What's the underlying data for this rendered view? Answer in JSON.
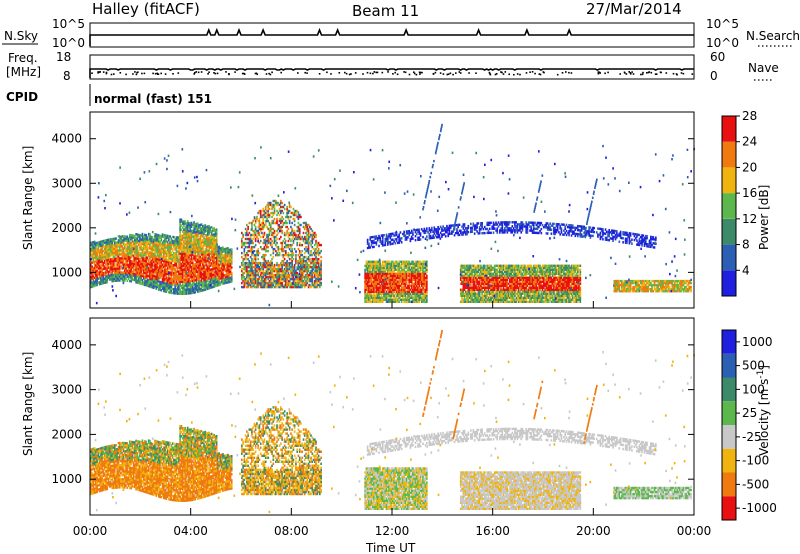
{
  "header": {
    "station": "Halley (fitACF)",
    "beam": "Beam 11",
    "date": "27/Mar/2014"
  },
  "strip_labels": {
    "nsky": "N.Sky",
    "nsky_top": "10^5",
    "nsky_bottom": "10^0",
    "nsearch": "N.Search",
    "nsearch_top": "10^5",
    "nsearch_bottom": "10^0",
    "freq_line1": "Freq.",
    "freq_line2": "[MHz]",
    "freq_top": "18",
    "freq_bottom": "8",
    "nave": "Nave",
    "nave_top": "60",
    "nave_bottom": "0",
    "cpid": "CPID",
    "cpid_value": "normal (fast) 151"
  },
  "chart_data": [
    {
      "type": "heatmap",
      "name": "power",
      "ylabel": "Slant Range [km]",
      "ylim": [
        200,
        4600
      ],
      "yticks": [
        "1000",
        "2000",
        "3000",
        "4000"
      ],
      "colorbar_label": "Power [dB]",
      "colorbar_ticks": [
        "4",
        "8",
        "12",
        "16",
        "20",
        "24",
        "28"
      ],
      "colors": [
        "#1f1fe0",
        "#2b5fb3",
        "#3c8a6a",
        "#5cb84c",
        "#f0b410",
        "#f07a10",
        "#e81010"
      ],
      "regions": [
        {
          "t": [
            0.0,
            5.5
          ],
          "r": [
            600,
            1900
          ],
          "level": "high",
          "note_free": true
        },
        {
          "t": [
            6.0,
            9.0
          ],
          "r": [
            600,
            2600
          ],
          "level": "mixed"
        },
        {
          "t": [
            10.8,
            13.4
          ],
          "r": [
            300,
            1300
          ],
          "level": "high"
        },
        {
          "t": [
            14.7,
            19.5
          ],
          "r": [
            300,
            1200
          ],
          "level": "high"
        },
        {
          "t": [
            11.0,
            22.0
          ],
          "r": [
            1400,
            2500
          ],
          "level": "low"
        },
        {
          "t": [
            20.8,
            24.0
          ],
          "r": [
            500,
            800
          ],
          "level": "mid"
        }
      ]
    },
    {
      "type": "heatmap",
      "name": "velocity",
      "ylabel": "Slant Range [km]",
      "xlabel": "Time UT",
      "ylim": [
        200,
        4600
      ],
      "yticks": [
        "1000",
        "2000",
        "3000",
        "4000"
      ],
      "xticks": [
        "00:00",
        "04:00",
        "08:00",
        "12:00",
        "16:00",
        "20:00",
        "00:00"
      ],
      "colorbar_label": "Velocity [m s",
      "colorbar_label_sup": "-1",
      "colorbar_label_end": "]",
      "colorbar_ticks": [
        "1000",
        "500",
        "100",
        "25",
        "-25",
        "-100",
        "-500",
        "-1000"
      ],
      "colors": [
        "#1f1fe0",
        "#2b5fb3",
        "#3c8a6a",
        "#5cb84c",
        "#c8c8c8",
        "#f0b410",
        "#f07a10",
        "#e81010"
      ]
    }
  ]
}
